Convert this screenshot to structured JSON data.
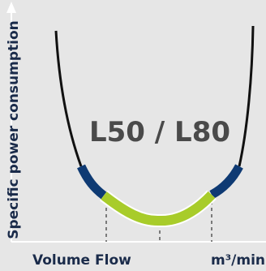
{
  "chart_data": {
    "type": "line",
    "title": "L50 / L80",
    "ylabel": "Specific power consumption",
    "xlabel": "Volume Flow",
    "x_unit": "m³/min",
    "curve": {
      "color_outer": "#111111",
      "color_transition": "#0e3a73",
      "color_optimal": "#a8cc2a",
      "optimal_outline": "#ffffff"
    },
    "guide_lines": 3,
    "colors": {
      "background": "#e6e6e6",
      "axis": "#ffffff",
      "label": "#1a2b4a",
      "model_label": "#4a4a4a",
      "guide": "#333333"
    }
  }
}
